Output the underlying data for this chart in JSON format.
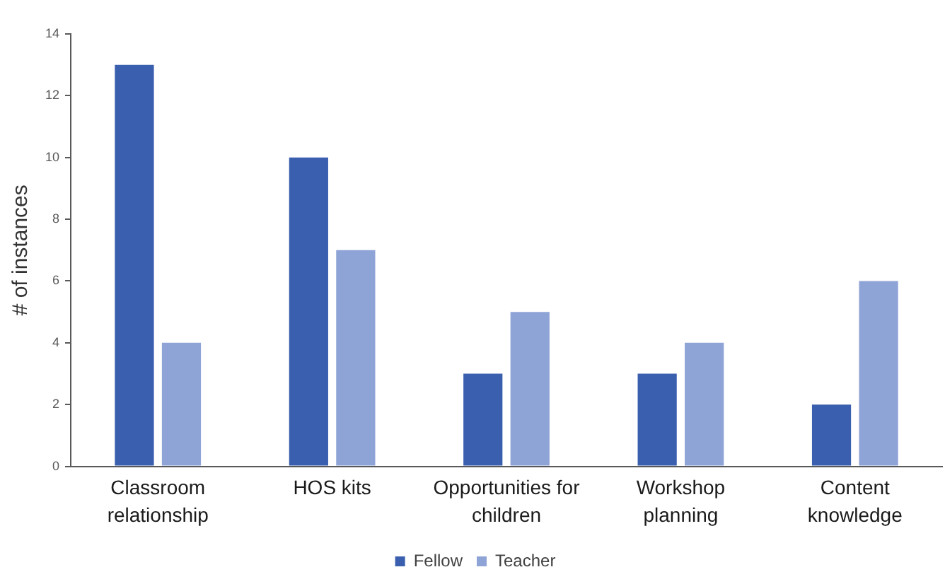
{
  "chart_data": {
    "type": "bar",
    "ylabel": "# of instances",
    "categories": [
      "Classroom relationship",
      "HOS kits",
      "Opportunities for children",
      "Workshop planning",
      "Content knowledge"
    ],
    "series": [
      {
        "name": "Fellow",
        "color": "#3a5fae",
        "values": [
          13,
          10,
          3,
          3,
          2
        ]
      },
      {
        "name": "Teacher",
        "color": "#8ea3d6",
        "values": [
          4,
          7,
          5,
          4,
          6
        ]
      }
    ],
    "ylim": [
      0,
      14
    ],
    "yticks": [
      0,
      2,
      4,
      6,
      8,
      10,
      12,
      14
    ],
    "grid": false,
    "legend": "bottom"
  }
}
